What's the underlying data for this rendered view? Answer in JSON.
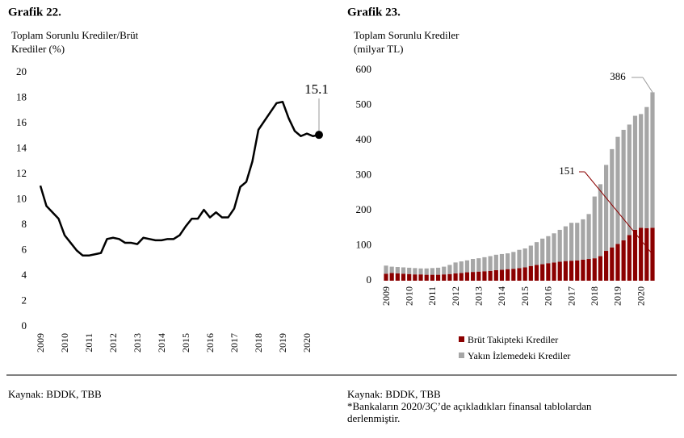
{
  "chart_data": [
    {
      "type": "line",
      "heading": "Grafik 22.",
      "title": [
        "Toplam Sorunlu Krediler/Brüt",
        "Krediler (%)"
      ],
      "categories": [
        "2009",
        null,
        null,
        null,
        "2010",
        null,
        null,
        null,
        "2011",
        null,
        null,
        null,
        "2012",
        null,
        null,
        null,
        "2013",
        null,
        null,
        null,
        "2014",
        null,
        null,
        null,
        "2015",
        null,
        null,
        null,
        "2016",
        null,
        null,
        null,
        "2017",
        null,
        null,
        null,
        "2018",
        null,
        null,
        null,
        "2019",
        null,
        null,
        null,
        "2020",
        null,
        null
      ],
      "values": [
        11.1,
        9.5,
        9.0,
        8.5,
        7.2,
        6.6,
        6.0,
        5.6,
        5.6,
        5.7,
        5.8,
        6.9,
        7.0,
        6.9,
        6.6,
        6.6,
        6.5,
        7.0,
        6.9,
        6.8,
        6.8,
        6.9,
        6.9,
        7.2,
        7.9,
        8.5,
        8.5,
        9.2,
        8.6,
        9.0,
        8.6,
        8.6,
        9.3,
        11.0,
        11.4,
        13.0,
        15.5,
        16.2,
        16.9,
        17.6,
        17.7,
        16.4,
        15.4,
        15.0,
        15.2,
        15.0,
        15.1
      ],
      "color": "#000000",
      "ylim": [
        0,
        20
      ],
      "yticks": [
        0,
        2,
        4,
        6,
        8,
        10,
        12,
        14,
        16,
        18,
        20
      ],
      "source": "Kaynak: BDDK, TBB"
    },
    {
      "type": "stacked_bar",
      "heading": "Grafik 23.",
      "title": [
        "Toplam Sorunlu Krediler",
        "(milyar TL)"
      ],
      "categories": [
        "2009",
        null,
        null,
        null,
        "2010",
        null,
        null,
        null,
        "2011",
        null,
        null,
        null,
        "2012",
        null,
        null,
        null,
        "2013",
        null,
        null,
        null,
        "2014",
        null,
        null,
        null,
        "2015",
        null,
        null,
        null,
        "2016",
        null,
        null,
        null,
        "2017",
        null,
        null,
        null,
        "2018",
        null,
        null,
        null,
        "2019",
        null,
        null,
        null,
        "2020",
        null,
        null
      ],
      "series": [
        {
          "name": "Brüt Takipteki Krediler",
          "color": "#8b0000",
          "values": [
            20,
            22,
            21,
            20,
            19,
            18,
            18,
            17,
            17,
            17,
            18,
            19,
            21,
            22,
            24,
            25,
            26,
            27,
            28,
            30,
            31,
            33,
            34,
            36,
            38,
            42,
            45,
            47,
            50,
            52,
            54,
            56,
            57,
            58,
            60,
            62,
            64,
            70,
            85,
            95,
            105,
            115,
            130,
            145,
            151,
            150,
            151
          ]
        },
        {
          "name": "Yakın İzlemedeki Krediler",
          "color": "#a6a6a6",
          "values": [
            23,
            18,
            18,
            18,
            18,
            18,
            17,
            18,
            19,
            20,
            22,
            26,
            31,
            33,
            34,
            37,
            38,
            40,
            42,
            44,
            45,
            45,
            48,
            52,
            54,
            58,
            65,
            73,
            77,
            83,
            91,
            99,
            108,
            107,
            115,
            128,
            176,
            205,
            245,
            280,
            305,
            315,
            315,
            325,
            324,
            345,
            386
          ]
        }
      ],
      "ylim": [
        0,
        600
      ],
      "yticks": [
        0,
        100,
        200,
        300,
        400,
        500,
        600
      ],
      "source": "Kaynak: BDDK, TBB",
      "note": [
        "*Bankaların 2020/3Ç’de açıkladıkları finansal tablolardan",
        "derlenmiştir."
      ]
    }
  ]
}
